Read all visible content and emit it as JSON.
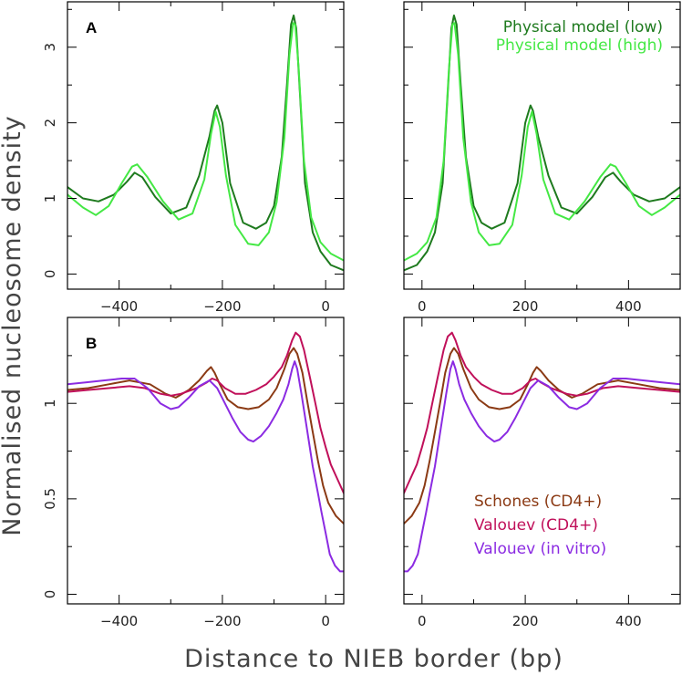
{
  "figure": {
    "ylabel": "Normalised nucleosome density",
    "xlabel": "Distance to NIEB border (bp)"
  },
  "chart_data": [
    {
      "id": "A",
      "type": "line",
      "label": "A",
      "ylim": [
        -0.2,
        3.6
      ],
      "yticks": [
        0,
        1,
        2,
        3
      ],
      "left_xlim": [
        -500,
        35
      ],
      "right_xlim": [
        -35,
        500
      ],
      "left_xticks": [
        -400,
        -200,
        0
      ],
      "right_xticks": [
        0,
        200,
        400
      ],
      "legend_position": "top-right",
      "series": [
        {
          "name": "Physical model (low)",
          "color": "#1e7a1e",
          "x": [
            -500,
            -470,
            -440,
            -410,
            -385,
            -370,
            -355,
            -330,
            -300,
            -270,
            -245,
            -225,
            -215,
            -210,
            -200,
            -185,
            -160,
            -135,
            -115,
            -100,
            -85,
            -75,
            -67,
            -62,
            -57,
            -50,
            -40,
            -25,
            -10,
            10,
            35
          ],
          "y": [
            1.15,
            1.0,
            0.96,
            1.05,
            1.22,
            1.34,
            1.28,
            1.02,
            0.8,
            0.88,
            1.3,
            1.82,
            2.16,
            2.23,
            2.0,
            1.2,
            0.68,
            0.6,
            0.68,
            0.9,
            1.55,
            2.5,
            3.3,
            3.42,
            3.25,
            2.4,
            1.2,
            0.55,
            0.3,
            0.12,
            0.05
          ]
        },
        {
          "name": "Physical model (high)",
          "color": "#44e844",
          "x": [
            -500,
            -470,
            -445,
            -420,
            -395,
            -375,
            -365,
            -345,
            -315,
            -285,
            -258,
            -235,
            -222,
            -213,
            -205,
            -193,
            -175,
            -150,
            -130,
            -110,
            -95,
            -80,
            -70,
            -63,
            -59,
            -52,
            -42,
            -28,
            -10,
            10,
            35
          ],
          "y": [
            1.05,
            0.88,
            0.78,
            0.9,
            1.2,
            1.42,
            1.45,
            1.28,
            0.96,
            0.72,
            0.8,
            1.25,
            1.85,
            2.15,
            1.95,
            1.3,
            0.65,
            0.4,
            0.38,
            0.55,
            0.95,
            1.8,
            2.9,
            3.32,
            3.3,
            2.7,
            1.5,
            0.75,
            0.42,
            0.27,
            0.18
          ]
        }
      ]
    },
    {
      "id": "B",
      "type": "line",
      "label": "B",
      "ylim": [
        -0.05,
        1.45
      ],
      "yticks": [
        0,
        0.5,
        1
      ],
      "left_xlim": [
        -500,
        35
      ],
      "right_xlim": [
        -35,
        500
      ],
      "left_xticks": [
        -400,
        -200,
        0
      ],
      "right_xticks": [
        0,
        200,
        400
      ],
      "legend_position": "bottom-right",
      "series": [
        {
          "name": "Schones (CD4+)",
          "color": "#8b3a14",
          "x": [
            -500,
            -460,
            -420,
            -380,
            -340,
            -310,
            -290,
            -265,
            -245,
            -230,
            -222,
            -215,
            -205,
            -190,
            -170,
            -150,
            -130,
            -110,
            -95,
            -80,
            -70,
            -62,
            -55,
            -45,
            -35,
            -25,
            -15,
            -5,
            5,
            20,
            35
          ],
          "y": [
            1.07,
            1.08,
            1.1,
            1.12,
            1.1,
            1.05,
            1.03,
            1.07,
            1.12,
            1.17,
            1.19,
            1.16,
            1.1,
            1.02,
            0.98,
            0.97,
            0.98,
            1.02,
            1.08,
            1.18,
            1.26,
            1.29,
            1.26,
            1.16,
            1.0,
            0.85,
            0.7,
            0.57,
            0.48,
            0.41,
            0.37
          ]
        },
        {
          "name": "Valouev (CD4+)",
          "color": "#c0105a",
          "x": [
            -500,
            -460,
            -420,
            -380,
            -350,
            -320,
            -300,
            -280,
            -250,
            -230,
            -220,
            -210,
            -195,
            -175,
            -155,
            -135,
            -115,
            -100,
            -85,
            -75,
            -65,
            -58,
            -50,
            -42,
            -30,
            -20,
            -10,
            0,
            10,
            25,
            35
          ],
          "y": [
            1.06,
            1.07,
            1.08,
            1.09,
            1.08,
            1.05,
            1.04,
            1.05,
            1.08,
            1.11,
            1.13,
            1.12,
            1.08,
            1.05,
            1.05,
            1.07,
            1.1,
            1.14,
            1.19,
            1.25,
            1.33,
            1.37,
            1.35,
            1.28,
            1.13,
            1.0,
            0.87,
            0.77,
            0.68,
            0.59,
            0.53
          ]
        },
        {
          "name": "Valouev (in vitro)",
          "color": "#8b2be2",
          "x": [
            -500,
            -465,
            -430,
            -395,
            -370,
            -345,
            -320,
            -300,
            -285,
            -265,
            -245,
            -225,
            -210,
            -195,
            -180,
            -165,
            -150,
            -140,
            -125,
            -110,
            -95,
            -82,
            -72,
            -65,
            -60,
            -55,
            -47,
            -37,
            -25,
            -15,
            -8,
            0,
            8,
            18,
            28,
            35
          ],
          "y": [
            1.1,
            1.11,
            1.12,
            1.13,
            1.13,
            1.08,
            1.0,
            0.97,
            0.98,
            1.03,
            1.09,
            1.12,
            1.08,
            1.0,
            0.92,
            0.85,
            0.81,
            0.8,
            0.83,
            0.88,
            0.95,
            1.02,
            1.1,
            1.18,
            1.22,
            1.18,
            1.05,
            0.88,
            0.67,
            0.53,
            0.43,
            0.32,
            0.21,
            0.15,
            0.12,
            0.12
          ]
        }
      ]
    }
  ]
}
